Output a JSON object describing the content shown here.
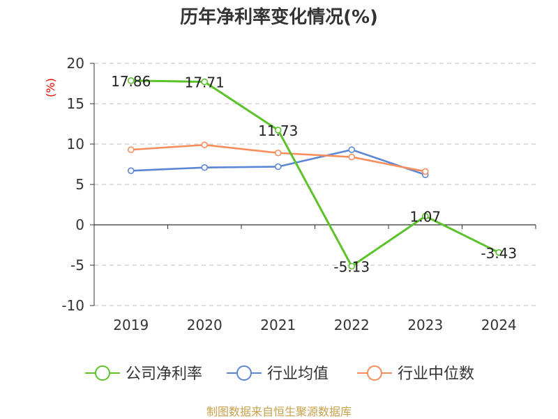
{
  "chart_data": {
    "type": "line",
    "title": "历年净利率变化情况(%)",
    "ylabel": "(%)",
    "xlabel": "",
    "categories": [
      "2019",
      "2020",
      "2021",
      "2022",
      "2023",
      "2024"
    ],
    "ylim": [
      -10,
      20
    ],
    "yticks": [
      "20",
      "15",
      "10",
      "5",
      "0",
      "-5",
      "-10"
    ],
    "grid": true,
    "legend_position": "bottom",
    "series": [
      {
        "name": "公司净利率",
        "color": "#5cc22a",
        "values": [
          17.86,
          17.71,
          11.73,
          -5.13,
          1.07,
          -3.43
        ],
        "labels": [
          "17.86",
          "17.71",
          "11.73",
          "-5.13",
          "1.07",
          "-3.43"
        ]
      },
      {
        "name": "行业均值",
        "color": "#5b86d6",
        "values": [
          6.7,
          7.1,
          7.2,
          9.3,
          6.2,
          null
        ]
      },
      {
        "name": "行业中位数",
        "color": "#f78d5b",
        "values": [
          9.3,
          9.9,
          8.9,
          8.4,
          6.6,
          null
        ]
      }
    ]
  },
  "footer": {
    "source": "制图数据来自恒生聚源数据库"
  }
}
